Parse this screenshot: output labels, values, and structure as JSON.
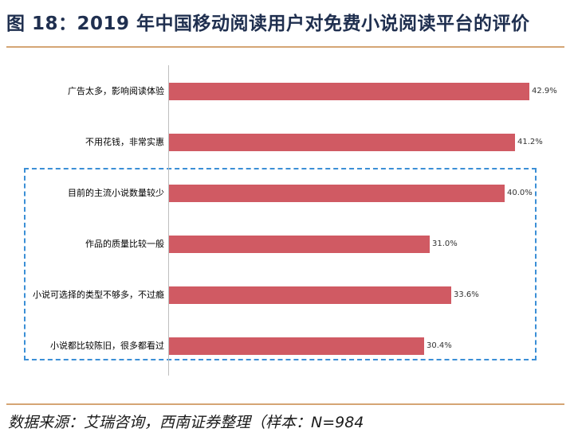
{
  "title": "图 18：2019 年中国移动阅读用户对免费小说阅读平台的评价",
  "source": "数据来源：艾瑞咨询，西南证券整理（样本：N=984",
  "colors": {
    "bar": "#d05a63",
    "title_rule": "#d5a574",
    "highlight_box": "#3b8fd6"
  },
  "chart_data": {
    "type": "bar",
    "orientation": "horizontal",
    "categories": [
      "广告太多，影响阅读体验",
      "不用花钱，非常实惠",
      "目前的主流小说数量较少",
      "作品的质量比较一般",
      "小说可选择的类型不够多，不过瘾",
      "小说都比较陈旧，很多都看过"
    ],
    "values": [
      42.9,
      41.2,
      40.0,
      31.0,
      33.6,
      30.4
    ],
    "value_labels": [
      "42.9%",
      "41.2%",
      "40.0%",
      "31.0%",
      "33.6%",
      "30.4%"
    ],
    "xlim": [
      0,
      42.9
    ],
    "grid": false,
    "highlighted_categories": [
      2,
      3,
      4,
      5
    ]
  }
}
